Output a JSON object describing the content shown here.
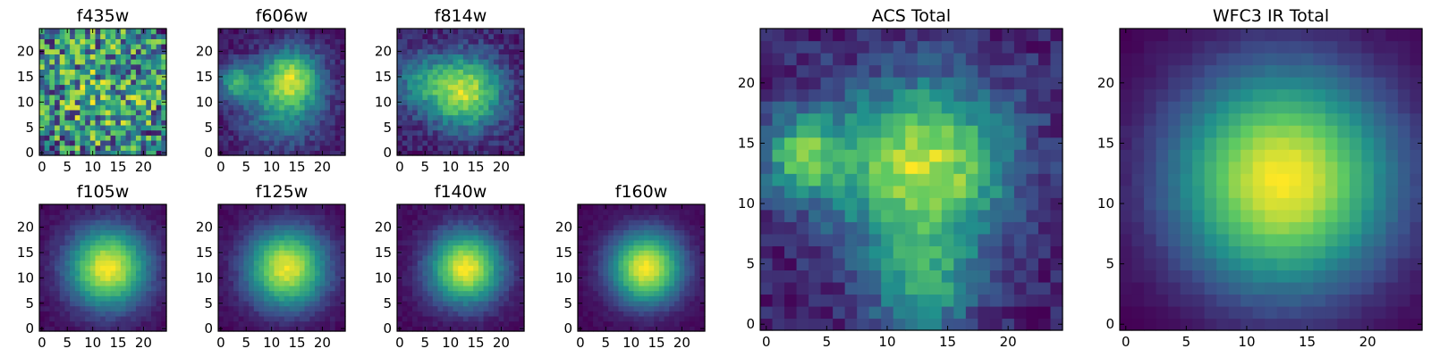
{
  "figure": {
    "colormap": "viridis",
    "colormap_stops": [
      "#440154",
      "#3b528b",
      "#21918c",
      "#5ec962",
      "#fde725"
    ]
  },
  "chart_data": [
    {
      "type": "heatmap",
      "title": "f435w",
      "grid_size": 25,
      "xticks": [
        0,
        5,
        10,
        15,
        20
      ],
      "yticks": [
        0,
        5,
        10,
        15,
        20
      ],
      "xlim": [
        0,
        25
      ],
      "ylim": [
        0,
        25
      ],
      "pattern": "noise",
      "center": [
        12,
        12
      ],
      "sigma": 14,
      "noise": 0.45,
      "base": 0.55,
      "seed": 11
    },
    {
      "type": "heatmap",
      "title": "f606w",
      "grid_size": 25,
      "xticks": [
        0,
        5,
        10,
        15,
        20
      ],
      "yticks": [
        0,
        5,
        10,
        15,
        20
      ],
      "xlim": [
        0,
        25
      ],
      "ylim": [
        0,
        25
      ],
      "pattern": "blobs",
      "blobs": [
        [
          14,
          15,
          4,
          1.0
        ],
        [
          3,
          14,
          2.5,
          0.75
        ],
        [
          12,
          9,
          6,
          0.6
        ]
      ],
      "noise": 0.25,
      "base": 0.1,
      "seed": 23
    },
    {
      "type": "heatmap",
      "title": "f814w",
      "grid_size": 25,
      "xticks": [
        0,
        5,
        10,
        15,
        20
      ],
      "yticks": [
        0,
        5,
        10,
        15,
        20
      ],
      "xlim": [
        0,
        25
      ],
      "ylim": [
        0,
        25
      ],
      "pattern": "blobs",
      "blobs": [
        [
          13,
          12,
          5,
          1.0
        ],
        [
          4,
          14,
          4,
          0.4
        ]
      ],
      "noise": 0.25,
      "base": 0.15,
      "seed": 37
    },
    {
      "type": "heatmap",
      "title": "f105w",
      "grid_size": 25,
      "xticks": [
        0,
        5,
        10,
        15,
        20
      ],
      "yticks": [
        0,
        5,
        10,
        15,
        20
      ],
      "xlim": [
        0,
        25
      ],
      "ylim": [
        0,
        25
      ],
      "pattern": "blobs",
      "blobs": [
        [
          13,
          12,
          5.5,
          1.0
        ]
      ],
      "noise": 0.08,
      "base": 0.0,
      "seed": 41
    },
    {
      "type": "heatmap",
      "title": "f125w",
      "grid_size": 25,
      "xticks": [
        0,
        5,
        10,
        15,
        20
      ],
      "yticks": [
        0,
        5,
        10,
        15,
        20
      ],
      "xlim": [
        0,
        25
      ],
      "ylim": [
        0,
        25
      ],
      "pattern": "blobs",
      "blobs": [
        [
          13,
          12,
          5.5,
          1.0
        ]
      ],
      "noise": 0.08,
      "base": 0.0,
      "seed": 53
    },
    {
      "type": "heatmap",
      "title": "f140w",
      "grid_size": 25,
      "xticks": [
        0,
        5,
        10,
        15,
        20
      ],
      "yticks": [
        0,
        5,
        10,
        15,
        20
      ],
      "xlim": [
        0,
        25
      ],
      "ylim": [
        0,
        25
      ],
      "pattern": "blobs",
      "blobs": [
        [
          13,
          12,
          5.0,
          1.0
        ]
      ],
      "noise": 0.08,
      "base": 0.0,
      "seed": 67
    },
    {
      "type": "heatmap",
      "title": "f160w",
      "grid_size": 25,
      "xticks": [
        0,
        5,
        10,
        15,
        20
      ],
      "yticks": [
        0,
        5,
        10,
        15,
        20
      ],
      "xlim": [
        0,
        25
      ],
      "ylim": [
        0,
        25
      ],
      "pattern": "blobs",
      "blobs": [
        [
          13,
          12,
          5.0,
          1.0
        ]
      ],
      "noise": 0.06,
      "base": 0.0,
      "seed": 71
    },
    {
      "type": "heatmap",
      "title": "ACS Total",
      "grid_size": 25,
      "xticks": [
        0,
        5,
        10,
        15,
        20
      ],
      "yticks": [
        0,
        5,
        10,
        15,
        20
      ],
      "xlim": [
        0,
        25
      ],
      "ylim": [
        0,
        25
      ],
      "pattern": "blobs",
      "blobs": [
        [
          13,
          13,
          5,
          1.0
        ],
        [
          3,
          14,
          2.5,
          0.7
        ],
        [
          13,
          3,
          3,
          0.5
        ]
      ],
      "noise": 0.25,
      "base": 0.2,
      "seed": 83
    },
    {
      "type": "heatmap",
      "title": "WFC3 IR Total",
      "grid_size": 25,
      "xticks": [
        0,
        5,
        10,
        15,
        20
      ],
      "yticks": [
        0,
        5,
        10,
        15,
        20
      ],
      "xlim": [
        0,
        25
      ],
      "ylim": [
        0,
        25
      ],
      "pattern": "blobs",
      "blobs": [
        [
          13,
          12,
          6.5,
          1.0
        ]
      ],
      "noise": 0.03,
      "base": 0.0,
      "seed": 97
    }
  ]
}
